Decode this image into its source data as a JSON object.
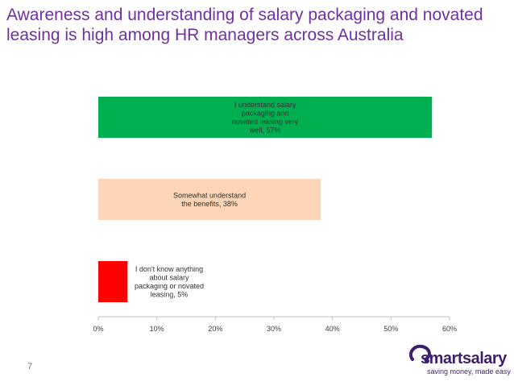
{
  "title": "Awareness and understanding of salary packaging and novated leasing is high among HR managers across Australia",
  "page_number": "7",
  "logo": {
    "name": "smartsalary",
    "tagline": "saving money, made easy",
    "color": "#3d1f6e"
  },
  "chart_data": {
    "type": "bar",
    "orientation": "horizontal",
    "categories": [
      "I understand salary packaging and novated leasing very well",
      "Somewhat understand the benefits",
      "I don't know anything about salary packaging or novated leasing"
    ],
    "values": [
      57,
      38,
      5
    ],
    "data_labels": [
      [
        "I understand salary",
        "packaging and",
        "novated leasing very",
        "well, 57%"
      ],
      [
        "Somewhat understand",
        "the benefits, 38%"
      ],
      [
        "I don't know anything",
        "about salary",
        "packaging or novated",
        "leasing, 5%"
      ]
    ],
    "colors": [
      "#00b050",
      "#fbd5b5",
      "#ff0000"
    ],
    "xlim": [
      0,
      60
    ],
    "x_ticks": [
      "0%",
      "10%",
      "20%",
      "30%",
      "40%",
      "50%",
      "60%"
    ],
    "grid": false,
    "legend": "none"
  }
}
